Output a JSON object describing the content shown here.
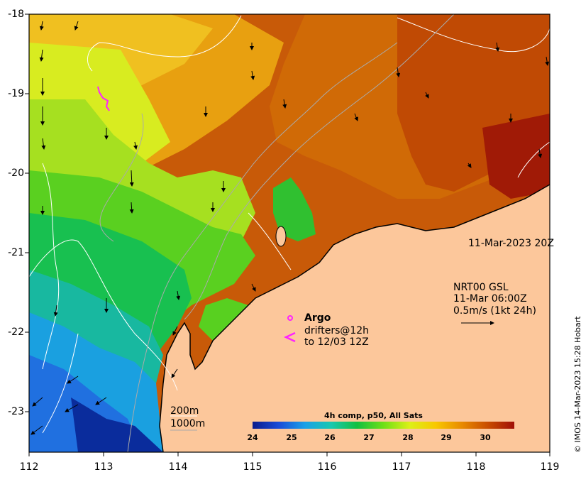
{
  "map": {
    "y_ticks": [
      "-18",
      "-19",
      "-20",
      "-21",
      "-22",
      "-23"
    ],
    "x_ticks": [
      "112",
      "113",
      "114",
      "115",
      "116",
      "117",
      "118",
      "119"
    ]
  },
  "annotations": {
    "date_label": "11-Mar-2023 20Z",
    "current_model": "NRT00 GSL",
    "current_time": "11-Mar 06:00Z",
    "current_scale": "0.5m/s (1kt 24h)",
    "argo_label": "Argo",
    "drifters_line1": "drifters@12h",
    "drifters_line2": "to 12/03 12Z",
    "contour_200": "200m",
    "contour_1000": "1000m"
  },
  "colorbar": {
    "title": "4h comp, p50, All Sats",
    "ticks": [
      "24",
      "25",
      "26",
      "27",
      "28",
      "29",
      "30"
    ]
  },
  "credit": "© IMOS 14-Mar-2023 15:28 Hobart",
  "colors": {
    "land": "#fcc79b",
    "argo_magenta": "#ff22ff",
    "sst_cold": "#0a1c8c",
    "sst_warm": "#a01008"
  }
}
